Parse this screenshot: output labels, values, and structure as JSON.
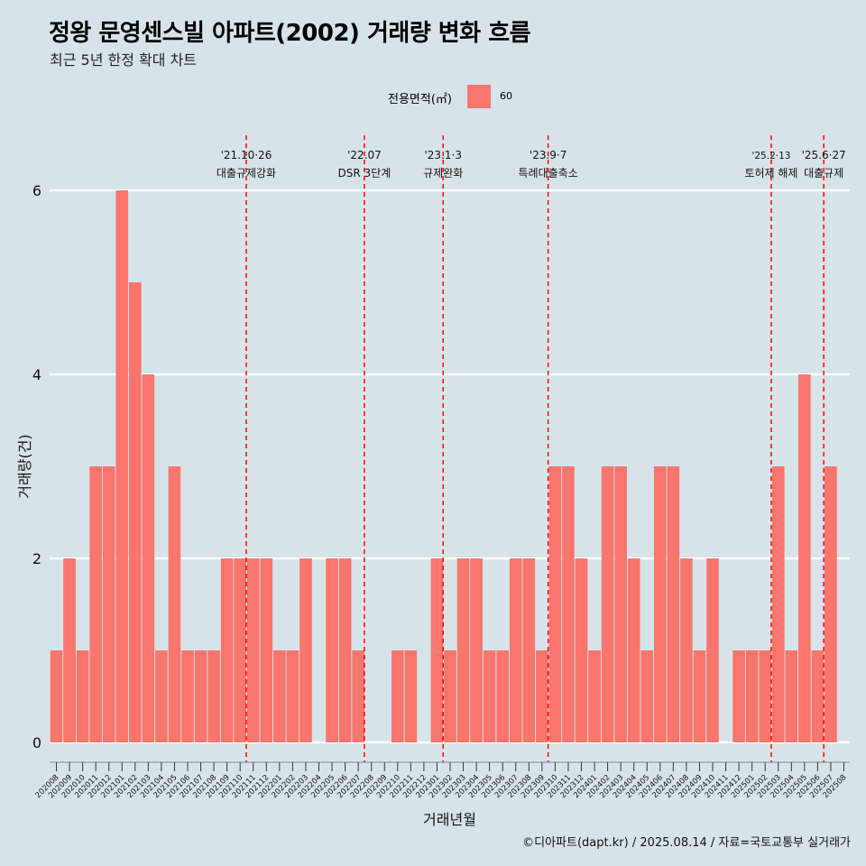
{
  "title": "정왕 문영센스빌 아파트(2002) 거래량 변화 흐름",
  "subtitle": "최근 5년 한정 확대 차트",
  "caption": "©디아파트(dapt.kr) / 2025.08.14 / 자료=국토교통부 실거래가",
  "legend": {
    "title": "전용면적(㎡)",
    "label": "60",
    "color": "#f8766d"
  },
  "colors": {
    "background": "#d6e4ea",
    "bar": "#f8766d",
    "grid": "#ffffff",
    "vline": "#ff0000"
  },
  "chart_data": {
    "type": "bar",
    "xlabel": "거래년월",
    "ylabel": "거래량(건)",
    "ylim": [
      0,
      6
    ],
    "yticks": [
      0,
      2,
      4,
      6
    ],
    "grid": true,
    "legend_position": "top",
    "categories": [
      "202008",
      "202009",
      "202010",
      "202011",
      "202012",
      "202101",
      "202102",
      "202103",
      "202104",
      "202105",
      "202106",
      "202107",
      "202108",
      "202109",
      "202110",
      "202111",
      "202112",
      "202201",
      "202202",
      "202203",
      "202204",
      "202205",
      "202206",
      "202207",
      "202208",
      "202209",
      "202210",
      "202211",
      "202212",
      "202301",
      "202302",
      "202303",
      "202304",
      "202305",
      "202306",
      "202307",
      "202308",
      "202309",
      "202310",
      "202311",
      "202312",
      "202401",
      "202402",
      "202403",
      "202404",
      "202405",
      "202406",
      "202407",
      "202408",
      "202409",
      "202410",
      "202411",
      "202412",
      "202501",
      "202502",
      "202503",
      "202504",
      "202505",
      "202506",
      "202507",
      "202508"
    ],
    "series": [
      {
        "name": "60",
        "values": [
          1,
          2,
          1,
          3,
          3,
          6,
          5,
          4,
          1,
          3,
          1,
          1,
          1,
          2,
          2,
          2,
          2,
          1,
          1,
          2,
          0,
          2,
          2,
          1,
          0,
          0,
          1,
          1,
          0,
          2,
          1,
          2,
          2,
          1,
          1,
          2,
          2,
          1,
          3,
          3,
          2,
          1,
          3,
          3,
          2,
          1,
          3,
          3,
          2,
          1,
          2,
          0,
          1,
          1,
          1,
          3,
          1,
          4,
          1,
          3,
          0
        ]
      }
    ],
    "annotations": [
      {
        "category": "202110",
        "date": "'21.10·26",
        "text": "대출규제강화"
      },
      {
        "category": "202207",
        "date": "'22.07",
        "text": "DSR 3단계"
      },
      {
        "category": "202301",
        "date": "'23.1·3",
        "text": "규제완화"
      },
      {
        "category": "202309",
        "date": "'23.9·7",
        "text": "특례대출축소"
      },
      {
        "category": "202502",
        "date": "'25.2·13",
        "text": "토허제 해제"
      },
      {
        "category": "202506",
        "date": "'25.6·27",
        "text": "대출규제"
      }
    ]
  }
}
